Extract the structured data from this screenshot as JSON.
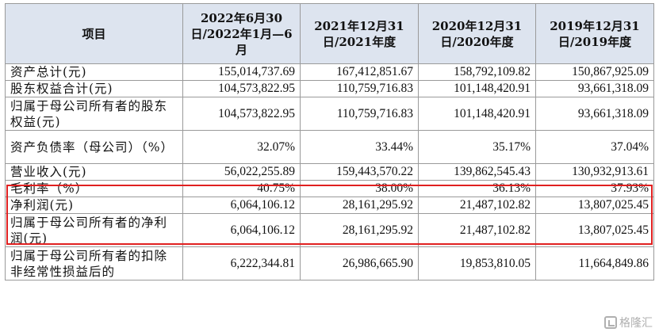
{
  "header": {
    "item": "项目",
    "col1": "2022年6月30日/2022年1月—6月",
    "col2": "2021年12月31日/2021年度",
    "col3": "2020年12月31日/2020年度",
    "col4": "2019年12月31日/2019年度"
  },
  "rows": [
    {
      "label": "资产总计(元)",
      "values": [
        "155,014,737.69",
        "167,412,851.67",
        "158,792,109.82",
        "150,867,925.09"
      ]
    },
    {
      "label": "股东权益合计(元)",
      "values": [
        "104,573,822.95",
        "110,759,716.83",
        "101,148,420.91",
        "93,661,318.09"
      ]
    },
    {
      "label": "归属于母公司所有者的股东权益(元)",
      "values": [
        "104,573,822.95",
        "110,759,716.83",
        "101,148,420.91",
        "93,661,318.09"
      ]
    },
    {
      "label": "资产负债率（母公司）（%）",
      "values": [
        "32.07%",
        "33.44%",
        "35.17%",
        "37.04%"
      ]
    },
    {
      "label": "营业收入(元)",
      "values": [
        "56,022,255.89",
        "159,443,570.22",
        "139,862,545.43",
        "130,932,913.61"
      ]
    },
    {
      "label": "毛利率（%）",
      "values": [
        "40.75%",
        "38.00%",
        "36.13%",
        "37.93%"
      ]
    },
    {
      "label": "净利润(元)",
      "values": [
        "6,064,106.12",
        "28,161,295.92",
        "21,487,102.82",
        "13,807,025.45"
      ]
    },
    {
      "label": "归属于母公司所有者的净利润(元)",
      "values": [
        "6,064,106.12",
        "28,161,295.92",
        "21,487,102.82",
        "13,807,025.45"
      ]
    },
    {
      "label": "归属于母公司所有者的扣除非经常性损益后的",
      "values": [
        "6,222,344.81",
        "26,986,665.90",
        "19,853,810.05",
        "11,664,849.86"
      ]
    }
  ],
  "watermark": "格隆汇",
  "highlight_color": "#e02020"
}
